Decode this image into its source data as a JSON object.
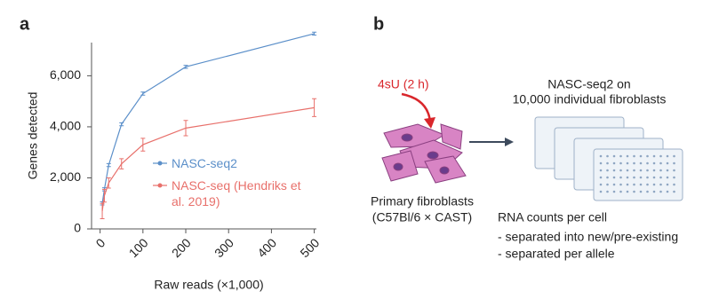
{
  "chart_data": {
    "type": "line",
    "panel": "a",
    "x_label": "Raw reads (×1,000)",
    "y_label": "Genes detected",
    "xlim": [
      -20,
      505
    ],
    "ylim": [
      0,
      7300
    ],
    "xticks": [
      0,
      100,
      200,
      300,
      400,
      500
    ],
    "yticks": [
      0,
      {
        "value": 2000,
        "label": "2,000"
      },
      {
        "value": 4000,
        "label": "4,000"
      },
      {
        "value": 6000,
        "label": "6,000"
      }
    ],
    "x": [
      5,
      10,
      20,
      50,
      100,
      200,
      500
    ],
    "series": [
      {
        "name": "NASC-seq2",
        "color": "#5b8fc9",
        "values": [
          1000,
          1550,
          2500,
          4100,
          5300,
          6350,
          7650
        ],
        "errors": [
          60,
          60,
          60,
          60,
          60,
          60,
          60
        ]
      },
      {
        "name": "NASC-seq (Hendriks et al. 2019)",
        "color": "#e8706b",
        "values": [
          700,
          1300,
          1800,
          2550,
          3300,
          3950,
          4750
        ],
        "errors": [
          300,
          250,
          200,
          200,
          250,
          300,
          350
        ]
      }
    ]
  },
  "diagram": {
    "panel": "b",
    "treatment": "4sU (2 h)",
    "cells": [
      "Primary fibroblasts",
      "(C57Bl/6 × CAST)"
    ],
    "plates": [
      "NASC-seq2 on",
      "10,000 individual fibroblasts"
    ],
    "output": [
      "RNA counts per cell",
      "- separated into new/pre-existing",
      "- separated per allele"
    ]
  }
}
